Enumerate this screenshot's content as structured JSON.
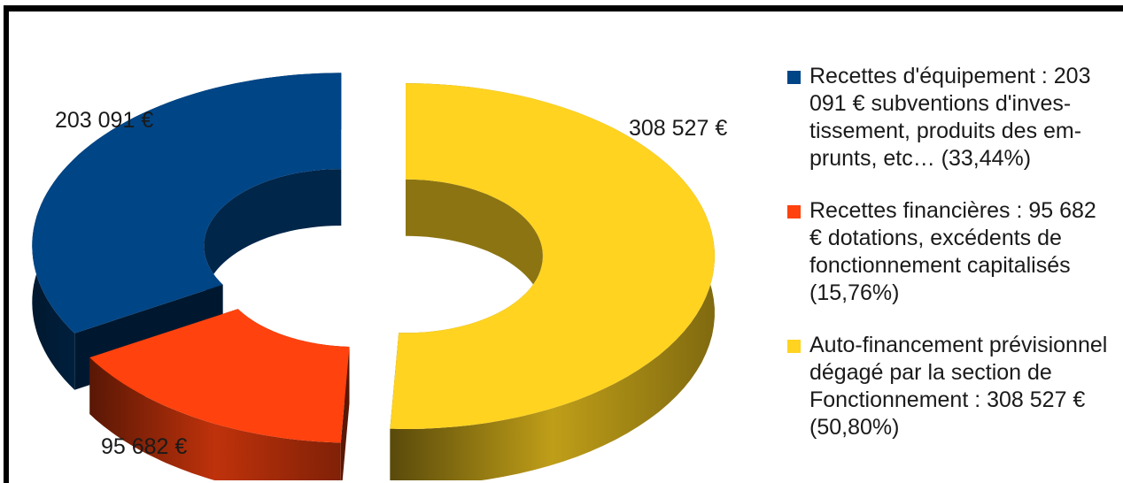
{
  "chart_data": {
    "type": "pie",
    "style": "3d-donut-exploded",
    "slices": [
      {
        "label": "203 091 €",
        "value": 203091,
        "percent": 33.44,
        "color": "#004586",
        "legend": "Recettes d'équipement : 203 091 € subventions d'inves-tissement, produits des em-prunts, etc… (33,44%)",
        "legend_lines": [
          "Recettes d'équipement : 203",
          "091 € subventions d'inves-",
          "tissement, produits des em-",
          "prunts, etc… (33,44%)"
        ]
      },
      {
        "label": "95 682 €",
        "value": 95682,
        "percent": 15.76,
        "color": "#ff420e",
        "legend": "Recettes financières : 95 682 € dotations, excédents de fonctionnement capitalisés (15,76%)",
        "legend_lines": [
          "Recettes financières : 95 682",
          "€ dotations, excédents de",
          "fonctionnement capitalisés",
          "(15,76%)"
        ]
      },
      {
        "label": "308 527 €",
        "value": 308527,
        "percent": 50.8,
        "color": "#ffd320",
        "legend": "Auto-financement prévisionnel dégagé par la section de Fonctionnement : 308 527 € (50,80%)",
        "legend_lines": [
          "Auto-financement prévisionnel",
          "dégagé par la section de",
          "Fonctionnement : 308 527 €",
          "(50,80%)"
        ]
      }
    ],
    "legend_position": "right"
  }
}
